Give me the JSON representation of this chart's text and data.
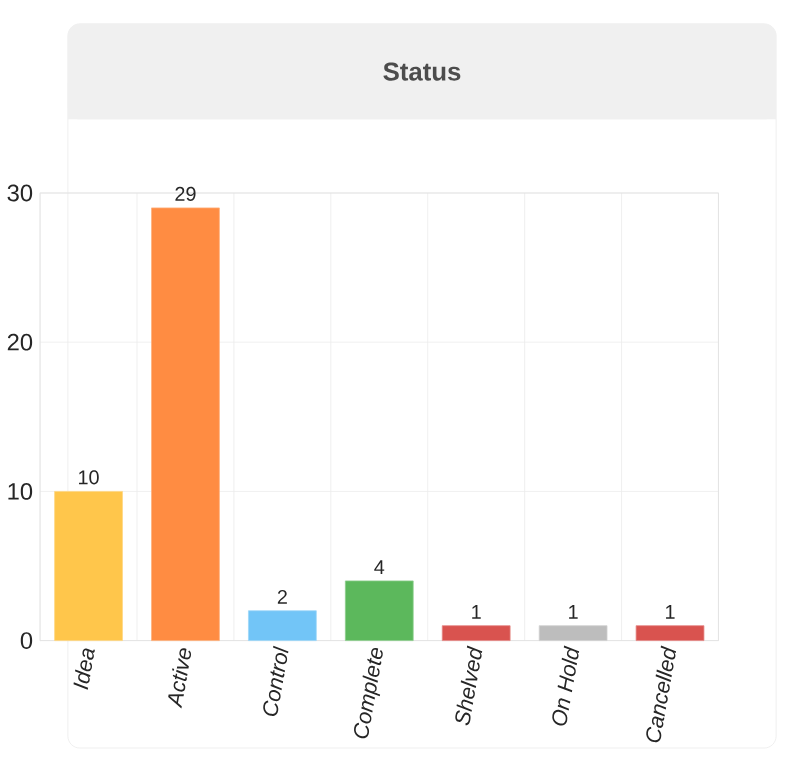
{
  "chart_data": {
    "type": "bar",
    "title": "Status",
    "categories": [
      "Idea",
      "Active",
      "Control",
      "Complete",
      "Shelved",
      "On Hold",
      "Cancelled"
    ],
    "values": [
      10,
      29,
      2,
      4,
      1,
      1,
      1
    ],
    "colors": [
      "#ffc64b",
      "#ff8c42",
      "#72c5f7",
      "#5cb85c",
      "#d9534f",
      "#bdbdbd",
      "#d9534f"
    ],
    "ylim": [
      0,
      30
    ],
    "yticks": [
      0,
      10,
      20,
      30
    ],
    "grid": true,
    "data_labels": true
  }
}
